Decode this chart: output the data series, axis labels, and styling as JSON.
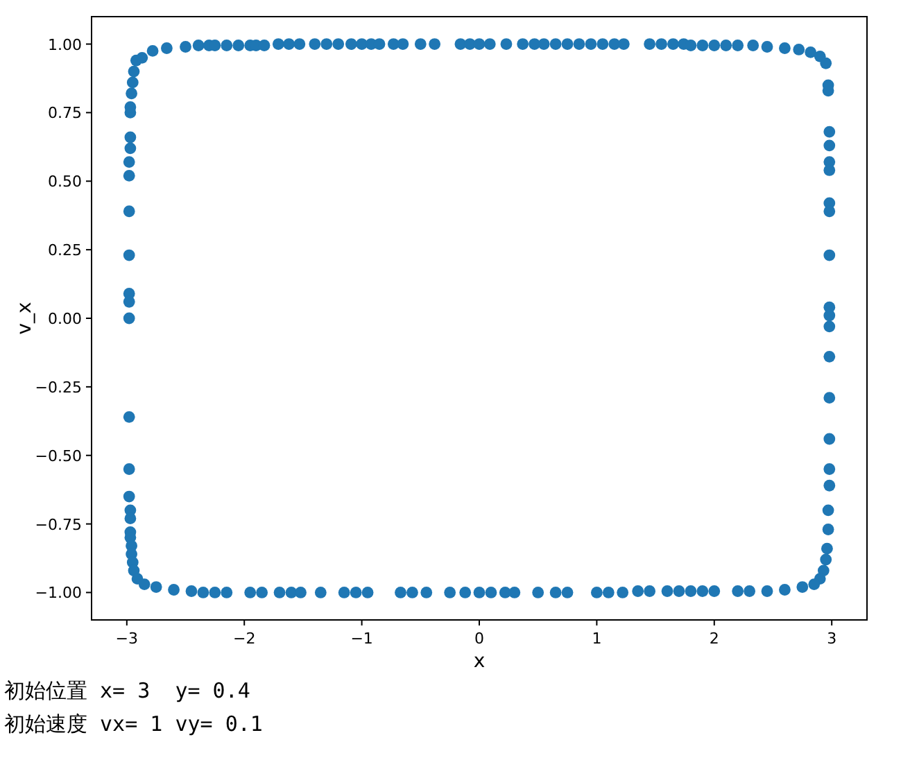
{
  "chart_data": {
    "type": "scatter",
    "xlabel": "x",
    "ylabel": "v_x",
    "color": "#1f77b4",
    "marker": "circle",
    "xlim": [
      -3.3,
      3.3
    ],
    "ylim": [
      -1.1,
      1.1
    ],
    "xticks": [
      -3,
      -2,
      -1,
      0,
      1,
      2,
      3
    ],
    "yticks": [
      {
        "value": -1,
        "label": "−1.00"
      },
      {
        "value": -0.75,
        "label": "−0.75"
      },
      {
        "value": -0.5,
        "label": "−0.50"
      },
      {
        "value": -0.25,
        "label": "−0.25"
      },
      {
        "value": 0,
        "label": "0.00"
      },
      {
        "value": 0.25,
        "label": "0.25"
      },
      {
        "value": 0.5,
        "label": "0.50"
      },
      {
        "value": 0.75,
        "label": "0.75"
      },
      {
        "value": 1,
        "label": "1.00"
      }
    ],
    "x": [
      -2.98,
      -2.98,
      -2.97,
      -2.97,
      -2.97,
      -2.97,
      -2.96,
      -2.95,
      -2.94,
      -2.92,
      -2.87,
      -2.78,
      -2.66,
      -2.5,
      -2.98,
      -2.98,
      -2.98,
      -2.98,
      -2.98,
      -2.98,
      -2.98,
      -2.98,
      -2.97,
      -2.97,
      -2.97,
      -2.97,
      -2.96,
      -2.96,
      -2.95,
      -2.94,
      -2.91,
      -2.85,
      -2.75,
      -2.6,
      -2.45,
      -2.39,
      -2.3,
      -2.25,
      -2.15,
      -2.05,
      -1.95,
      -1.9,
      -1.83,
      -1.71,
      -1.62,
      -1.53,
      -1.4,
      -1.3,
      -1.2,
      -1.09,
      -1.0,
      -0.92,
      -0.85,
      -0.73,
      -0.65,
      -0.5,
      -0.38,
      -0.16,
      -0.08,
      0.0,
      0.09,
      0.23,
      0.37,
      0.47,
      0.55,
      0.65,
      0.75,
      0.85,
      0.95,
      1.05,
      1.15,
      1.23,
      1.45,
      1.55,
      1.65,
      1.74,
      1.8,
      1.9,
      2.0,
      2.1,
      2.2,
      2.33,
      2.45,
      2.6,
      2.72,
      2.82,
      2.9,
      2.95,
      2.97,
      2.97,
      2.98,
      2.98,
      2.98,
      2.98,
      2.98,
      2.98,
      2.98,
      2.98,
      2.98,
      2.98,
      2.98,
      2.98,
      2.98,
      2.98,
      2.98,
      2.97,
      2.97,
      2.96,
      2.95,
      2.93,
      2.9,
      2.85,
      2.75,
      2.6,
      2.45,
      2.3,
      2.2,
      -2.35,
      -2.25,
      -2.15,
      -1.95,
      -1.85,
      -1.7,
      -1.6,
      -1.52,
      -1.35,
      -1.15,
      -1.05,
      -0.95,
      -0.67,
      -0.57,
      -0.45,
      -0.25,
      -0.12,
      0.0,
      0.1,
      0.22,
      0.3,
      0.5,
      0.65,
      0.75,
      1.0,
      1.1,
      1.22,
      1.35,
      1.45,
      1.6,
      1.7,
      1.8,
      1.9,
      2.0
    ],
    "values": [
      0.52,
      0.57,
      0.62,
      0.66,
      0.75,
      0.77,
      0.82,
      0.86,
      0.9,
      0.94,
      0.95,
      0.975,
      0.985,
      0.99,
      0.39,
      0.23,
      0.09,
      0.06,
      0.0,
      -0.36,
      -0.55,
      -0.65,
      -0.7,
      -0.73,
      -0.78,
      -0.8,
      -0.83,
      -0.86,
      -0.89,
      -0.92,
      -0.95,
      -0.97,
      -0.98,
      -0.99,
      -0.995,
      0.995,
      0.995,
      0.995,
      0.995,
      0.995,
      0.995,
      0.995,
      0.995,
      1.0,
      1.0,
      1.0,
      1.0,
      1.0,
      1.0,
      1.0,
      1.0,
      1.0,
      1.0,
      1.0,
      1.0,
      1.0,
      1.0,
      1.0,
      1.0,
      1.0,
      1.0,
      1.0,
      1.0,
      1.0,
      1.0,
      1.0,
      1.0,
      1.0,
      1.0,
      1.0,
      1.0,
      1.0,
      1.0,
      1.0,
      1.0,
      1.0,
      0.995,
      0.995,
      0.995,
      0.995,
      0.995,
      0.995,
      0.99,
      0.985,
      0.98,
      0.97,
      0.955,
      0.93,
      0.85,
      0.83,
      0.68,
      0.63,
      0.57,
      0.54,
      0.42,
      0.39,
      0.23,
      0.04,
      0.01,
      -0.03,
      -0.14,
      -0.29,
      -0.44,
      -0.55,
      -0.61,
      -0.7,
      -0.77,
      -0.84,
      -0.88,
      -0.92,
      -0.95,
      -0.97,
      -0.98,
      -0.99,
      -0.995,
      -0.995,
      -0.995,
      -1.0,
      -1.0,
      -1.0,
      -1.0,
      -1.0,
      -1.0,
      -1.0,
      -1.0,
      -1.0,
      -1.0,
      -1.0,
      -1.0,
      -1.0,
      -1.0,
      -1.0,
      -1.0,
      -1.0,
      -1.0,
      -1.0,
      -1.0,
      -1.0,
      -1.0,
      -1.0,
      -1.0,
      -1.0,
      -1.0,
      -1.0,
      -0.995,
      -0.995,
      -0.995,
      -0.995,
      -0.995,
      -0.995,
      -0.995
    ],
    "annotations": [
      "初始位置 x= 3  y= 0.4",
      "初始速度 vx= 1 vy= 0.1"
    ]
  }
}
